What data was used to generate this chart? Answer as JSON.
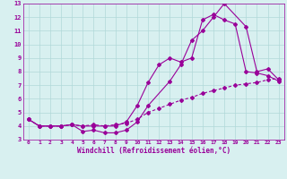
{
  "line1_x": [
    0,
    1,
    2,
    3,
    4,
    5,
    6,
    7,
    8,
    9,
    10,
    11,
    13,
    14,
    15,
    16,
    17,
    18,
    20,
    21,
    22,
    23
  ],
  "line1_y": [
    4.5,
    4.0,
    4.0,
    4.0,
    4.1,
    3.6,
    3.7,
    3.5,
    3.5,
    3.7,
    4.3,
    5.5,
    7.3,
    8.5,
    10.3,
    11.0,
    12.0,
    13.0,
    11.3,
    8.0,
    8.2,
    7.4
  ],
  "line2_x": [
    0,
    1,
    2,
    3,
    4,
    5,
    6,
    7,
    8,
    9,
    10,
    11,
    12,
    13,
    14,
    15,
    16,
    17,
    18,
    19,
    20,
    21,
    22,
    23
  ],
  "line2_y": [
    4.5,
    4.0,
    4.0,
    4.0,
    4.1,
    4.0,
    4.0,
    4.0,
    4.0,
    4.3,
    5.5,
    7.2,
    8.5,
    9.0,
    8.7,
    9.0,
    11.8,
    12.2,
    11.8,
    11.5,
    8.0,
    7.9,
    7.7,
    7.3
  ],
  "line3_x": [
    0,
    1,
    2,
    3,
    4,
    5,
    6,
    7,
    8,
    9,
    10,
    11,
    12,
    13,
    14,
    15,
    16,
    17,
    18,
    19,
    20,
    21,
    22,
    23
  ],
  "line3_y": [
    4.5,
    4.0,
    4.0,
    4.0,
    4.1,
    4.0,
    4.1,
    4.0,
    4.1,
    4.2,
    4.5,
    5.0,
    5.3,
    5.6,
    5.9,
    6.1,
    6.4,
    6.6,
    6.8,
    7.0,
    7.1,
    7.2,
    7.4,
    7.5
  ],
  "color": "#990099",
  "bg_color": "#d8f0f0",
  "grid_color": "#b0d8d8",
  "xlabel": "Windchill (Refroidissement éolien,°C)",
  "xlim": [
    -0.5,
    23.5
  ],
  "ylim": [
    3,
    13
  ],
  "xticks": [
    0,
    1,
    2,
    3,
    4,
    5,
    6,
    7,
    8,
    9,
    10,
    11,
    12,
    13,
    14,
    15,
    16,
    17,
    18,
    19,
    20,
    21,
    22,
    23
  ],
  "yticks": [
    3,
    4,
    5,
    6,
    7,
    8,
    9,
    10,
    11,
    12,
    13
  ],
  "marker": "D",
  "markersize": 2.0,
  "linewidth": 0.8
}
